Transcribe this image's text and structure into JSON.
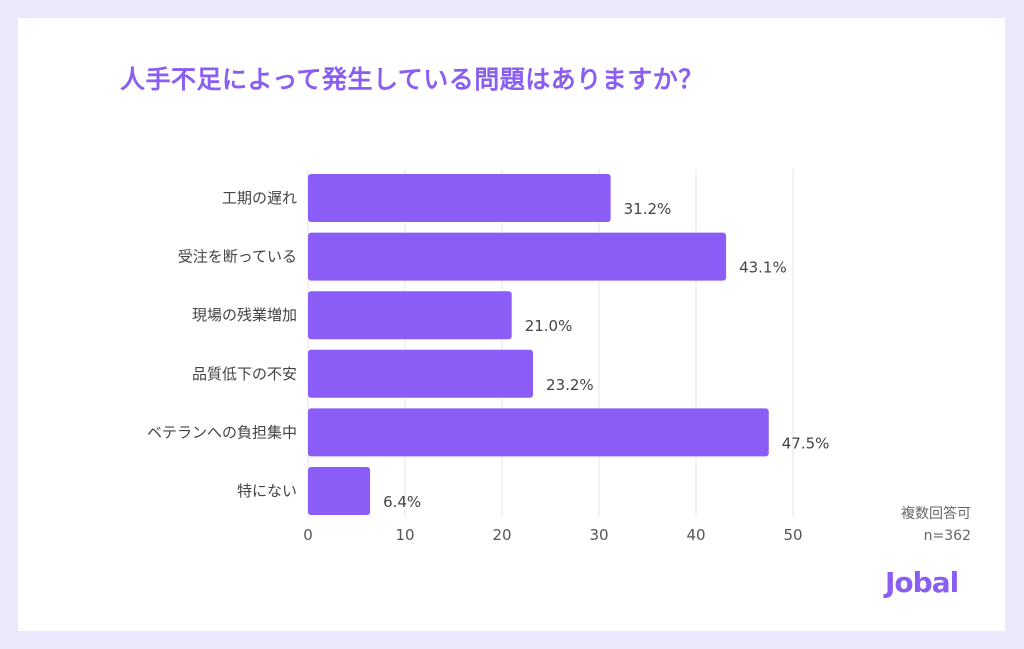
{
  "chart_data": {
    "type": "bar",
    "orientation": "horizontal",
    "title": "人手不足によって発生している問題はありますか？",
    "categories": [
      "工期の遅れ",
      "受注を断っている",
      "現場の残業増加",
      "品質低下の不安",
      "ベテランへの負担集中",
      "特にない"
    ],
    "values": [
      31.2,
      43.1,
      21.0,
      23.2,
      47.5,
      6.4
    ],
    "data_labels": [
      "31.2%",
      "43.1%",
      "21.0%",
      "23.2%",
      "47.5%",
      "6.4%"
    ],
    "xlim": [
      0,
      50
    ],
    "xticks": [
      0,
      10,
      20,
      30,
      40,
      50
    ],
    "xlabel": "",
    "ylabel": "",
    "grid": "vertical",
    "bar_color": "#8b5cf6"
  },
  "note": {
    "line1": "複数回答可",
    "line2": "n=362"
  },
  "logo": "Jobal",
  "colors": {
    "background": "#ede7fb",
    "accent": "#8a5ef0"
  }
}
